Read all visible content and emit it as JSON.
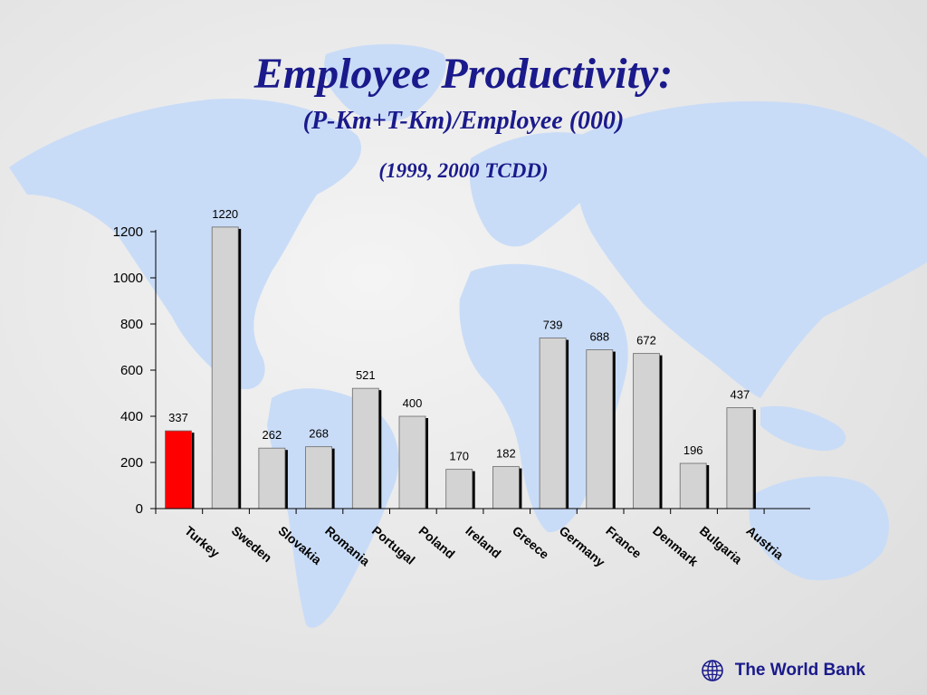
{
  "slide": {
    "title": "Employee Productivity:",
    "subtitle": "(P-Km+T-Km)/Employee (000)",
    "source_note": "(1999, 2000 TCDD)",
    "footer_label": "The World Bank",
    "background_color": "#e2e2e2",
    "map_color": "#c9dcf7"
  },
  "chart_data": {
    "type": "bar",
    "title": "",
    "xlabel": "",
    "ylabel": "",
    "categories": [
      "Turkey",
      "Sweden",
      "Slovakia",
      "Romania",
      "Portugal",
      "Poland",
      "Ireland",
      "Greece",
      "Germany",
      "France",
      "Denmark",
      "Bulgaria",
      "Austria"
    ],
    "values": [
      337,
      1220,
      262,
      268,
      521,
      400,
      170,
      182,
      739,
      688,
      672,
      196,
      437
    ],
    "data_labels": [
      "337",
      "1220",
      "262",
      "268",
      "521",
      "400",
      "170",
      "182",
      "739",
      "688",
      "672",
      "196",
      "437"
    ],
    "highlight_index": 0,
    "colors": {
      "bar": "#d3d3d3",
      "highlight": "#ff0000",
      "outline": "#000000"
    },
    "ylim": [
      0,
      1200
    ],
    "yticks": [
      0,
      200,
      400,
      600,
      800,
      1000,
      1200
    ],
    "grid": false,
    "legend": "none"
  }
}
